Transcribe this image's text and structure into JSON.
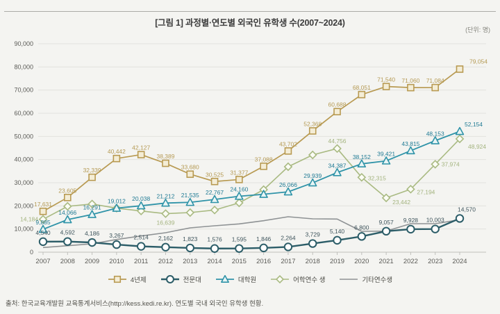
{
  "header": {
    "title": "[그림 1]  과정별·연도별 외국인 유학생 수(2007~2024)",
    "unit_note": "(단위: 명)"
  },
  "chart_data": {
    "type": "line",
    "title": "과정별·연도별 외국인 유학생 수(2007~2024)",
    "xlabel": "",
    "ylabel": "",
    "ylim": [
      0,
      90000
    ],
    "y_ticks": [
      0,
      10000,
      20000,
      30000,
      40000,
      50000,
      60000,
      70000,
      80000,
      90000
    ],
    "grid": true,
    "legend_position": "bottom",
    "x": [
      2007,
      2008,
      2009,
      2010,
      2011,
      2012,
      2013,
      2014,
      2015,
      2016,
      2017,
      2018,
      2019,
      2020,
      2021,
      2022,
      2023,
      2024
    ],
    "series": [
      {
        "id": "other-trainees",
        "name": "기타연수생",
        "marker": "none",
        "color": "#8e9294",
        "marker_fill": "none",
        "label_color": "#8e9294",
        "line_width": 1.6,
        "values": [
          2000,
          2800,
          3600,
          5500,
          7000,
          8400,
          10500,
          11400,
          12200,
          13600,
          15300,
          14400,
          14300,
          9000,
          9100,
          12300,
          12300,
          14000
        ],
        "labels": [
          "",
          "",
          "",
          "",
          "",
          "",
          "",
          "",
          "",
          "",
          "",
          "",
          "",
          "",
          "",
          "",
          "",
          ""
        ],
        "label_default": {
          "dx": 0,
          "dy": -7,
          "anchor": "middle"
        }
      },
      {
        "id": "language-training",
        "name": "어학연수 생",
        "marker": "diamond",
        "color": "#a9ba82",
        "marker_fill": "#fbfcf5",
        "label_color": "#a3b37e",
        "line_width": 1.6,
        "values": [
          14184,
          19800,
          20800,
          19000,
          17800,
          16639,
          17100,
          18200,
          21300,
          27000,
          36900,
          42000,
          44756,
          32315,
          23442,
          27194,
          37974,
          48924
        ],
        "labels": [
          "14,184",
          "",
          "",
          "",
          "",
          "16,639",
          "",
          "",
          "",
          "",
          "",
          "",
          "44,756",
          "32,315",
          "23,442",
          "27,194",
          "37,974",
          "48,924"
        ],
        "label_default": {
          "dx": 0,
          "dy": -8,
          "anchor": "middle"
        }
      },
      {
        "id": "univ-4yr",
        "name": "4년제",
        "marker": "square",
        "color": "#b89a52",
        "marker_fill": "#f4edd6",
        "label_color": "#b59a54",
        "line_width": 1.7,
        "values": [
          17631,
          23605,
          32339,
          40442,
          42127,
          38389,
          33680,
          30525,
          31377,
          37088,
          43702,
          52368,
          60688,
          68051,
          71540,
          71060,
          71084,
          79054
        ],
        "labels": [
          "17,631",
          "23,605",
          "32,339",
          "40,442",
          "42,127",
          "38,389",
          "33,680",
          "30,525",
          "31,377",
          "37,088",
          "43,702",
          "52,368",
          "60,688",
          "68,051",
          "71,540",
          "71,060",
          "71,084",
          "79,054"
        ],
        "label_default": {
          "dx": 0,
          "dy": -7,
          "anchor": "middle"
        }
      },
      {
        "id": "graduate-school",
        "name": "대학원",
        "marker": "triangle",
        "color": "#2f93a8",
        "marker_fill": "#e9f5f5",
        "label_color": "#1f7a94",
        "line_width": 1.8,
        "values": [
          9885,
          14066,
          16291,
          19012,
          20038,
          21212,
          21535,
          22767,
          24160,
          25000,
          26066,
          29939,
          34387,
          38152,
          39421,
          43815,
          48153,
          52154
        ],
        "labels": [
          "9,885",
          "14,066",
          "16,291",
          "19,012",
          "20,038",
          "21,212",
          "21,535",
          "22,767",
          "24,160",
          "",
          "26,066",
          "29,939",
          "34,387",
          "38,152",
          "39,421",
          "43,815",
          "48,153",
          "52,154"
        ],
        "label_default": {
          "dx": 0,
          "dy": -7,
          "anchor": "middle"
        }
      },
      {
        "id": "junior-college",
        "name": "전문대",
        "marker": "circle",
        "color": "#2c5d68",
        "marker_fill": "#ffffff",
        "label_color": "#3e545c",
        "line_width": 2.4,
        "values": [
          4540,
          4592,
          4186,
          3267,
          2514,
          2162,
          1823,
          1576,
          1595,
          1846,
          2264,
          3729,
          5140,
          6800,
          9057,
          9928,
          10003,
          14570
        ],
        "labels": [
          "4,540",
          "4,592",
          "4,186",
          "3,267",
          "2,514",
          "2,162",
          "1,823",
          "1,576",
          "1,595",
          "1,846",
          "2,264",
          "3,729",
          "5,140",
          "6,800",
          "9,057",
          "9,928",
          "10,003",
          "14,570"
        ],
        "label_default": {
          "dx": 0,
          "dy": -10,
          "anchor": "middle"
        }
      }
    ],
    "label_overrides": {
      "univ-4yr": {
        "17": {
          "dx": 40,
          "dy": -8,
          "anchor": "end"
        }
      },
      "junior-college": {
        "17": {
          "dx": 10,
          "dy": -10,
          "anchor": "middle"
        }
      },
      "graduate-school": {
        "17": {
          "dx": 20,
          "dy": -7,
          "anchor": "middle"
        }
      },
      "language-training": {
        "0": {
          "dx": -7,
          "dy": 3,
          "anchor": "end"
        },
        "5": {
          "dx": 0,
          "dy": 16,
          "anchor": "middle"
        },
        "13": {
          "dx": 9,
          "dy": 4,
          "anchor": "start"
        },
        "14": {
          "dx": 9,
          "dy": 9,
          "anchor": "start"
        },
        "15": {
          "dx": 9,
          "dy": 7,
          "anchor": "start"
        },
        "16": {
          "dx": 9,
          "dy": 3,
          "anchor": "start"
        },
        "17": {
          "dx": 38,
          "dy": 14,
          "anchor": "end"
        }
      }
    },
    "legend_order": [
      "univ-4yr",
      "junior-college",
      "graduate-school",
      "language-training",
      "other-trainees"
    ],
    "colors": {
      "grid": "#e2e2de",
      "axis": "#bfbfbb",
      "tick_label": "#5a5a56"
    }
  },
  "footer": {
    "source": "출처: 한국교육개발원 교육통계서비스(http://kess.kedi.re.kr). 연도별 국내 외국인 유학생 현황."
  }
}
